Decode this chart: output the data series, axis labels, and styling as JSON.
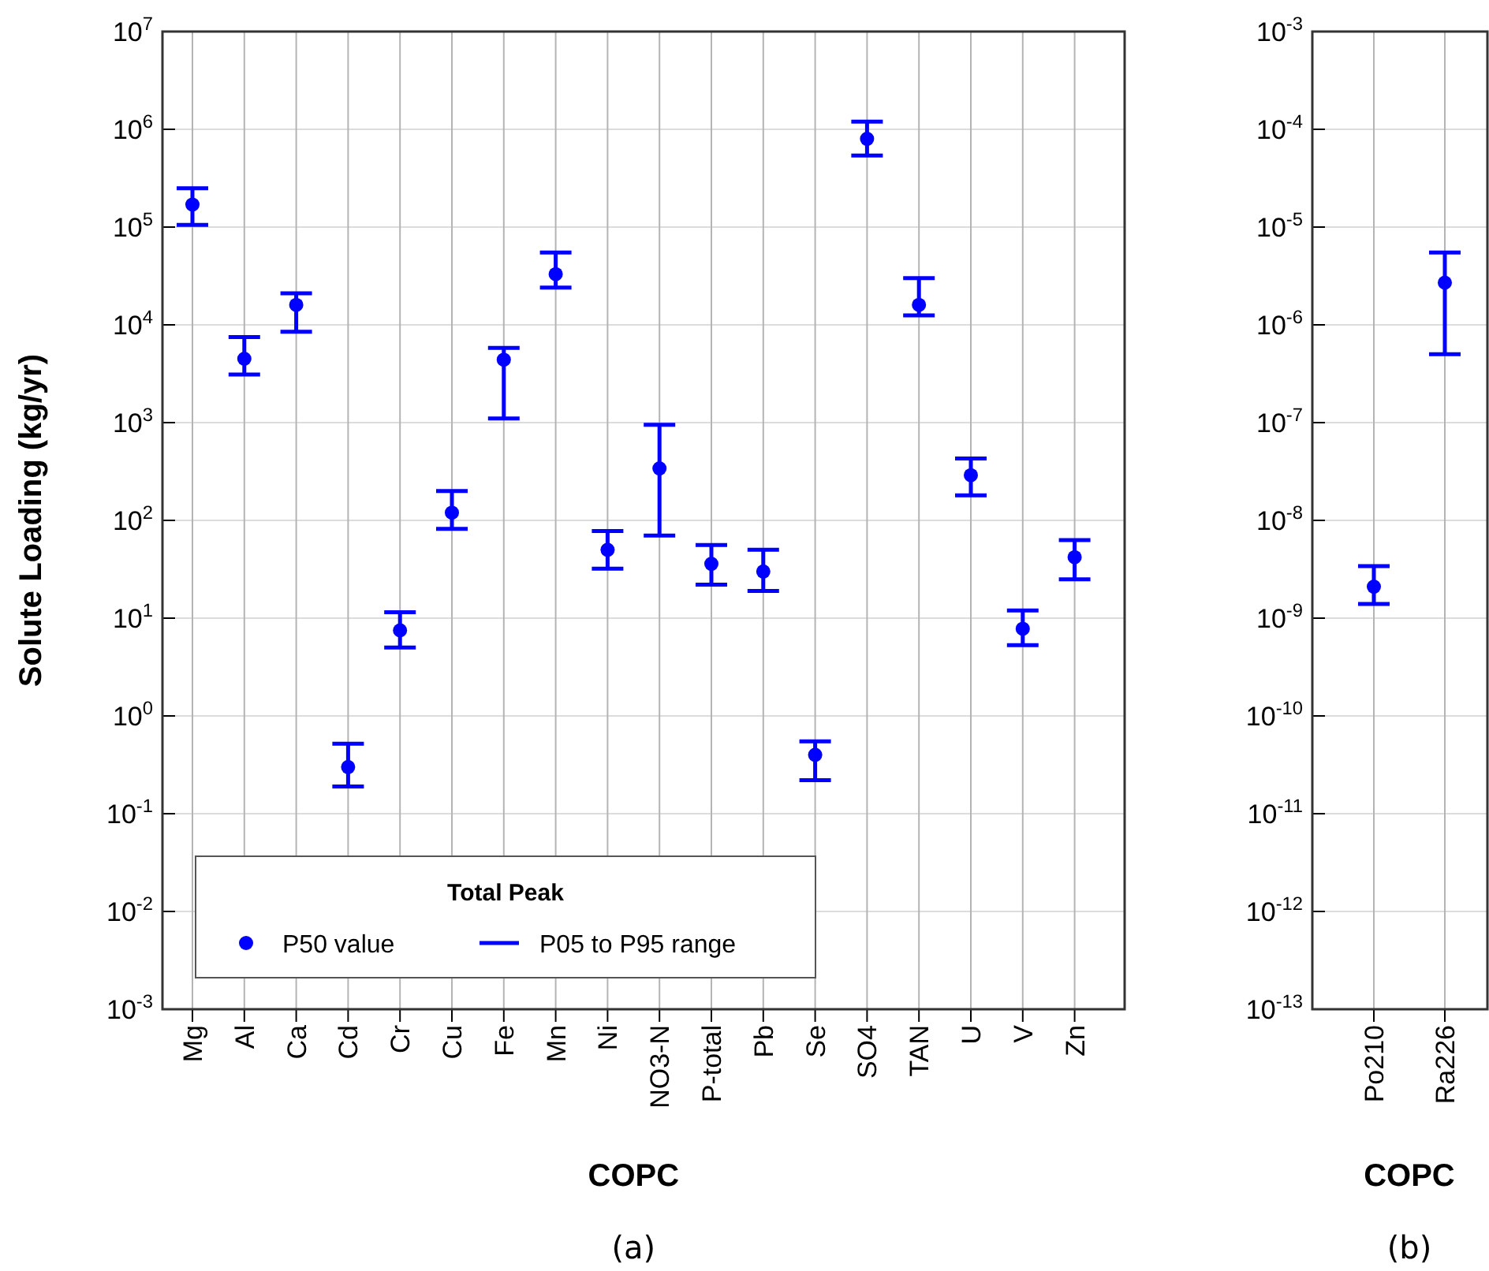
{
  "chart_data": [
    {
      "type": "scatter",
      "ylabel": "Solute Loading (kg/yr)",
      "xlabel": "COPC",
      "legend_title": "Total Peak",
      "legend": "bottom left",
      "grid": true,
      "log": "y",
      "marker": "circle",
      "categories": [
        "Mg",
        "Al",
        "Ca",
        "Cd",
        "Cr",
        "Cu",
        "Fe",
        "Mn",
        "Ni",
        "NO3-N",
        "P-total",
        "Pb",
        "Se",
        "SO4",
        "TAN",
        "U",
        "V",
        "Zn"
      ],
      "ylim": [
        0.001,
        10000000
      ],
      "yticks": [
        {
          "value": 0.001,
          "label": "10$^{-3}$"
        },
        {
          "value": 0.01,
          "label": "10$^{-2}$"
        },
        {
          "value": 0.1,
          "label": "10$^{-1}$"
        },
        {
          "value": 1,
          "label": "10$^{0}$"
        },
        {
          "value": 10,
          "label": "10$^{1}$"
        },
        {
          "value": 100,
          "label": "10$^{2}$"
        },
        {
          "value": 1000,
          "label": "10$^{3}$"
        },
        {
          "value": 10000,
          "label": "10$^{4}$"
        },
        {
          "value": 100000,
          "label": "10$^{5}$"
        },
        {
          "value": 1000000,
          "label": "10$^{6}$"
        },
        {
          "value": 10000000,
          "label": "10$^{7}$"
        }
      ],
      "series": [
        {
          "name": "P50 value",
          "color": "#0000ff",
          "values": [
            170000,
            4500,
            16000,
            0.3,
            7.5,
            120,
            4400,
            33000,
            50,
            340,
            36,
            30,
            0.4,
            800000,
            16000,
            290,
            7.8,
            42
          ],
          "errors": [
            [
              105000,
              250000
            ],
            [
              3100,
              7500
            ],
            [
              8500,
              21000
            ],
            [
              0.19,
              0.52
            ],
            [
              5,
              11.5
            ],
            [
              82,
              200
            ],
            [
              1100,
              5800
            ],
            [
              24000,
              55000
            ],
            [
              32,
              78
            ],
            [
              70,
              950
            ],
            [
              22,
              56
            ],
            [
              19,
              50
            ],
            [
              0.22,
              0.55
            ],
            [
              540000,
              1200000
            ],
            [
              12500,
              30000
            ],
            [
              180,
              430
            ],
            [
              5.3,
              12
            ],
            [
              25,
              63
            ]
          ]
        }
      ],
      "annotations": [
        "P05 to P95 range",
        "(a)"
      ]
    },
    {
      "type": "scatter",
      "xlabel": "COPC",
      "grid": true,
      "log": "y",
      "marker": "circle",
      "categories": [
        "Po210",
        "Ra226"
      ],
      "ylim": [
        1e-13,
        0.001
      ],
      "yticks": [
        {
          "value": 1e-13,
          "label": "10$^{-13}$"
        },
        {
          "value": 1e-12,
          "label": "10$^{-12}$"
        },
        {
          "value": 1e-11,
          "label": "10$^{-11}$"
        },
        {
          "value": 1e-10,
          "label": "10$^{-10}$"
        },
        {
          "value": 1e-09,
          "label": "10$^{-9}$"
        },
        {
          "value": 1e-08,
          "label": "10$^{-8}$"
        },
        {
          "value": 1e-07,
          "label": "10$^{-7}$"
        },
        {
          "value": 1e-06,
          "label": "10$^{-6}$"
        },
        {
          "value": 1e-05,
          "label": "10$^{-5}$"
        },
        {
          "value": 0.0001,
          "label": "10$^{-4}$"
        },
        {
          "value": 0.001,
          "label": "10$^{-3}$"
        }
      ],
      "series": [
        {
          "color": "#0000ff",
          "values": [
            2.1e-09,
            2.7e-06
          ],
          "errors": [
            [
              1.4e-09,
              3.4e-09
            ],
            [
              5e-07,
              5.5e-06
            ]
          ]
        }
      ],
      "annotations": [
        "(b)"
      ]
    }
  ]
}
